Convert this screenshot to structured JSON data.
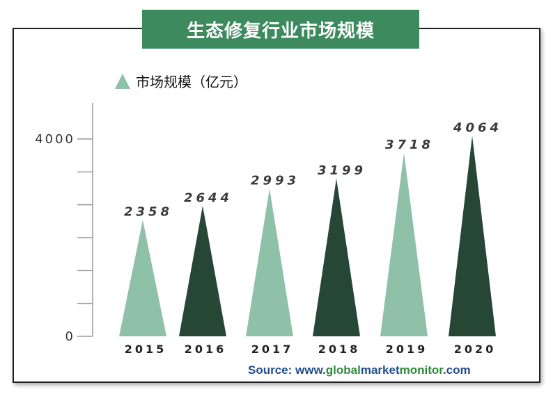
{
  "title": "生态修复行业市场规模",
  "legend": {
    "label": "市场规模（亿元）",
    "color": "#8fc1a8"
  },
  "source": {
    "prefix": "Source: www.",
    "part1": "global",
    "part2": "market",
    "part3": "monitor",
    "suffix": ".com"
  },
  "colors": {
    "light": "#8fc1a8",
    "dark": "#264636",
    "title_bg": "#3d8a5e",
    "source_blue": "#1f4e8c",
    "source_green": "#2e8b3a"
  },
  "chart_data": {
    "type": "bar",
    "categories": [
      "2015",
      "2016",
      "2017",
      "2018",
      "2019",
      "2020"
    ],
    "series": [
      {
        "name": "市场规模（亿元）",
        "values": [
          2358,
          2644,
          2993,
          3199,
          3718,
          4064
        ]
      }
    ],
    "data_labels": [
      "2358",
      "2644",
      "2993",
      "3199",
      "3718",
      "4064"
    ],
    "ylim": [
      0,
      4000
    ],
    "yticks": [
      "0",
      "4000"
    ],
    "bar_colors": [
      "#8fc1a8",
      "#264636",
      "#8fc1a8",
      "#264636",
      "#8fc1a8",
      "#264636"
    ],
    "legend_position": "top-left",
    "grid": false
  }
}
